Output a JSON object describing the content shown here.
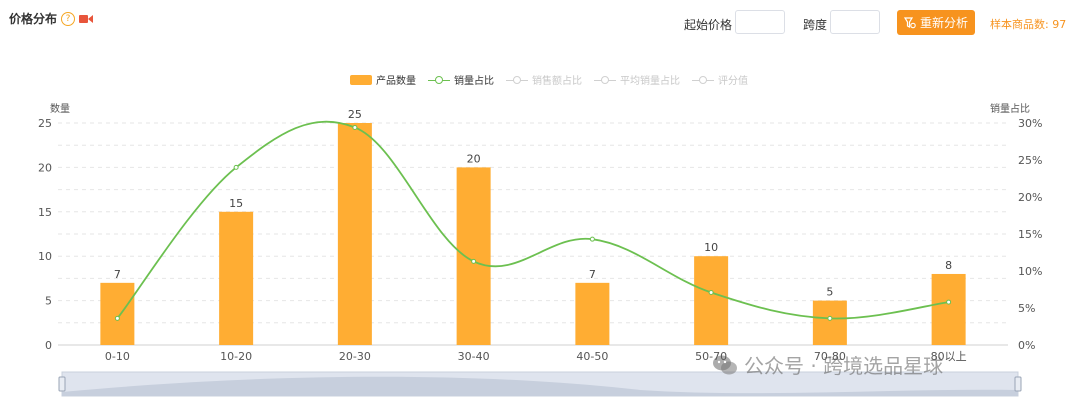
{
  "header": {
    "title": "价格分布",
    "help_glyph": "?",
    "start_price_label": "起始价格",
    "span_label": "跨度",
    "reanalyze_label": "重新分析",
    "sample_count_text": "样本商品数: 97"
  },
  "legend": [
    {
      "label": "产品数量",
      "kind": "bar",
      "active": true
    },
    {
      "label": "销量占比",
      "kind": "line",
      "active": true
    },
    {
      "label": "销售额占比",
      "kind": "line",
      "active": false
    },
    {
      "label": "平均销量占比",
      "kind": "line",
      "active": false
    },
    {
      "label": "评分值",
      "kind": "line",
      "active": false
    }
  ],
  "watermark": "公众号 · 跨境选品星球",
  "colors": {
    "bar": "#ffad33",
    "line": "#6cc050",
    "accent": "#f7931e"
  },
  "chart_data": {
    "type": "bar",
    "categories": [
      "0-10",
      "10-20",
      "20-30",
      "30-40",
      "40-50",
      "50-70",
      "70-80",
      "80以上"
    ],
    "series": [
      {
        "name": "产品数量",
        "type": "bar",
        "axis": "left",
        "values": [
          7,
          15,
          25,
          20,
          7,
          10,
          5,
          8
        ]
      },
      {
        "name": "销量占比",
        "type": "line",
        "axis": "right",
        "unit": "%",
        "values": [
          3.6,
          24,
          29.4,
          11.3,
          14.3,
          7.1,
          3.6,
          5.8
        ]
      }
    ],
    "ylabel": "数量",
    "y2label": "销量占比",
    "ylim": [
      0,
      25
    ],
    "y2lim": [
      0,
      30
    ],
    "yticks": [
      0,
      5,
      10,
      15,
      20,
      25
    ],
    "y2ticks": [
      "0%",
      "5%",
      "10%",
      "15%",
      "20%",
      "25%",
      "30%"
    ],
    "data_labels": true,
    "grid": true
  }
}
